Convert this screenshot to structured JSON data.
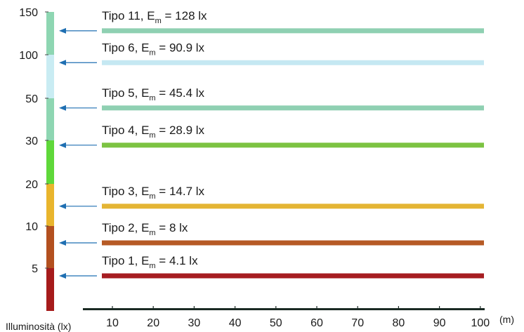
{
  "chart_data": {
    "type": "bar",
    "ylabel": "Illuminosità (lx)",
    "xunit": "(m)",
    "x_ticks": [
      "10",
      "20",
      "30",
      "40",
      "50",
      "60",
      "70",
      "80",
      "90",
      "100"
    ],
    "x_range": [
      10,
      100
    ],
    "scale_ticks": [
      "150",
      "100",
      "50",
      "30",
      "20",
      "10",
      "5"
    ],
    "scale_bands": [
      {
        "from": 150,
        "to": 100,
        "color": "#8ed6b2"
      },
      {
        "from": 100,
        "to": 50,
        "color": "#c9ecf3"
      },
      {
        "from": 50,
        "to": 30,
        "color": "#8ed6b2"
      },
      {
        "from": 30,
        "to": 20,
        "color": "#5fd83a"
      },
      {
        "from": 20,
        "to": 10,
        "color": "#e9b52d"
      },
      {
        "from": 10,
        "to": 5,
        "color": "#b3501f"
      },
      {
        "from": 5,
        "to": 0,
        "color": "#a61b1b"
      }
    ],
    "series": [
      {
        "prefix": "Tipo 11, E",
        "sub": "m",
        "suffix": " = 128 lx",
        "value": 128,
        "color": "#8fd0b2"
      },
      {
        "prefix": "Tipo 6, E",
        "sub": "m",
        "suffix": " = 90.9 lx",
        "value": 90.9,
        "color": "#c5e8f2"
      },
      {
        "prefix": "Tipo 5, E",
        "sub": "m",
        "suffix": " = 45.4 lx",
        "value": 45.4,
        "color": "#8fd0b2"
      },
      {
        "prefix": "Tipo 4, E",
        "sub": "m",
        "suffix": " = 28.9 lx",
        "value": 28.9,
        "color": "#7cc342"
      },
      {
        "prefix": "Tipo 3, E",
        "sub": "m",
        "suffix": " = 14.7 lx",
        "value": 14.7,
        "color": "#e4b534"
      },
      {
        "prefix": "Tipo 2, E",
        "sub": "m",
        "suffix": " = 8 lx",
        "value": 8,
        "color": "#b65a25"
      },
      {
        "prefix": "Tipo 1, E",
        "sub": "m",
        "suffix": " = 4.1 lx",
        "value": 4.1,
        "color": "#a61d21"
      }
    ],
    "arrow_color": "#1f6fb2",
    "axis_color": "#1a2a24"
  }
}
